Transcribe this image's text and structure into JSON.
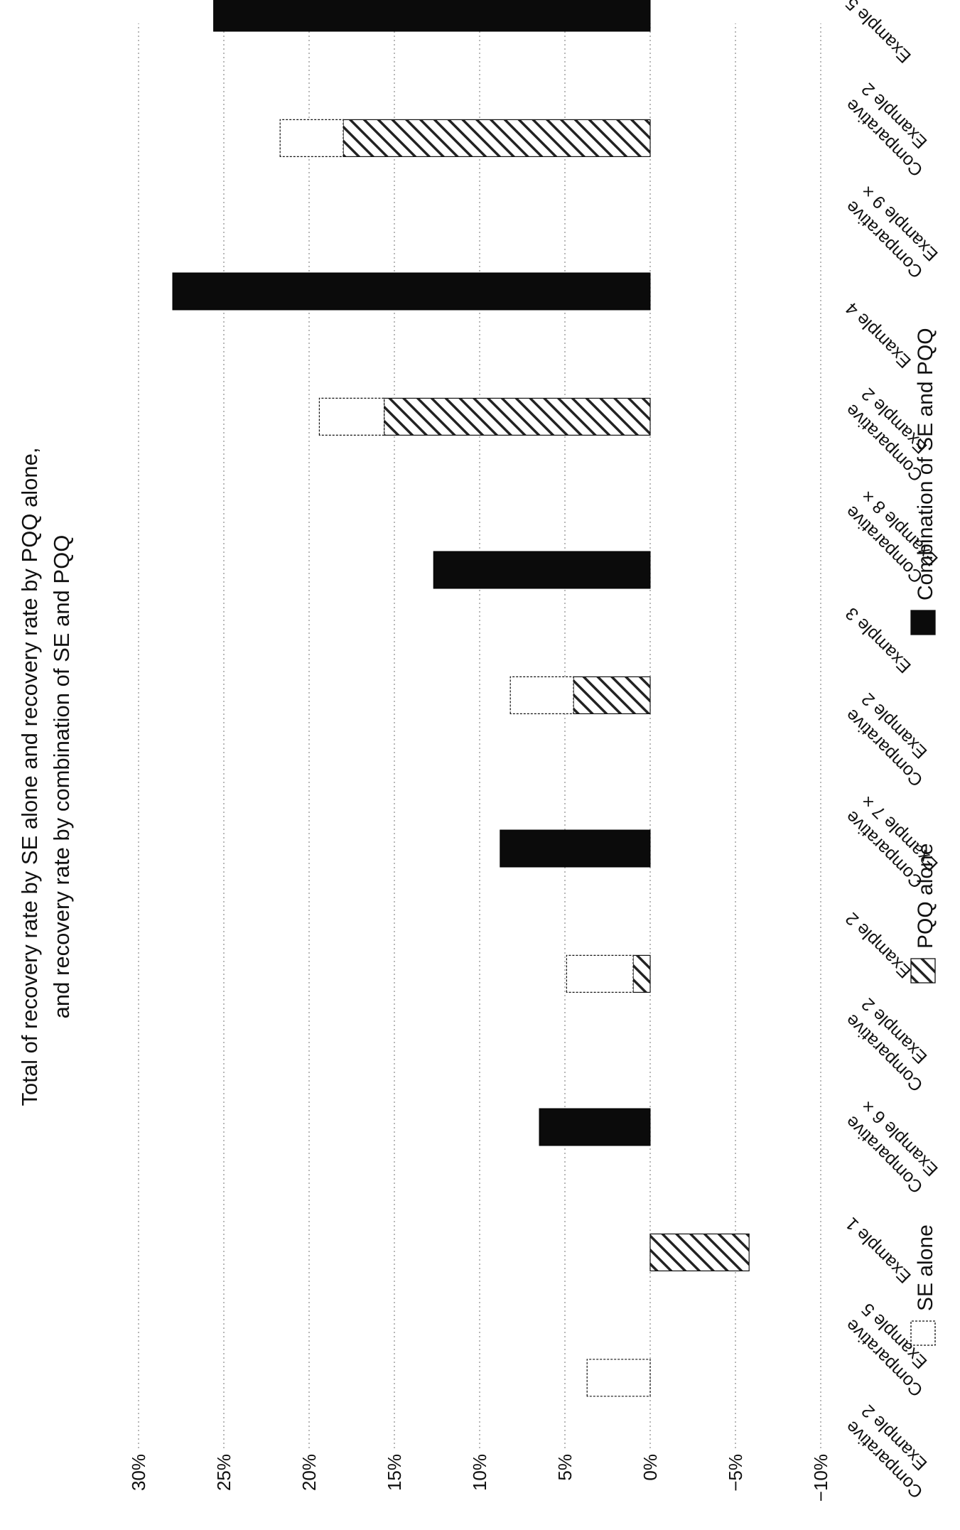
{
  "chart_data": {
    "type": "bar",
    "title_lines": [
      "Total of recovery rate by SE alone and recovery rate by PQQ alone,",
      "and recovery rate by combination of SE and PQQ"
    ],
    "xlabel": "",
    "ylabel": "",
    "ylim": [
      -10,
      30
    ],
    "y_ticks": [
      30,
      25,
      20,
      15,
      10,
      5,
      0,
      -5,
      -10
    ],
    "y_tick_labels": [
      "30%",
      "25%",
      "20%",
      "15%",
      "10%",
      "5%",
      "0%",
      "−5%",
      "−10%"
    ],
    "grid": true,
    "orientation": "rotated-90",
    "categories": [
      {
        "top": "Comparative",
        "bottom": "Example 2"
      },
      {
        "top": "Comparative",
        "bottom": "Example 5"
      },
      {
        "top": "Example 1",
        "bottom": ""
      },
      {
        "top": "Comparative",
        "bottom": "Example 6 ×"
      },
      {
        "top": "Comparative",
        "bottom": "Example 2"
      },
      {
        "top": "Example 2",
        "bottom": ""
      },
      {
        "top": "Comparative",
        "bottom": "Example 7 ×"
      },
      {
        "top": "Comparative",
        "bottom": "Example 2"
      },
      {
        "top": "Example 3",
        "bottom": ""
      },
      {
        "top": "Comparative",
        "bottom": "Example 8 ×"
      },
      {
        "top": "Comparative",
        "bottom": "Example 2"
      },
      {
        "top": "Example 4",
        "bottom": ""
      },
      {
        "top": "Comparative",
        "bottom": "Example 9 ×"
      },
      {
        "top": "Comparative",
        "bottom": "Example 2"
      },
      {
        "top": "Example 5",
        "bottom": ""
      }
    ],
    "bars": [
      {
        "kind": "se",
        "pos": 0.2,
        "value": 3.7
      },
      {
        "kind": "pqq",
        "pos": 1.1,
        "value": -5.8
      },
      {
        "kind": "comb",
        "pos": 2.0,
        "value": 6.5
      },
      {
        "kind": "stack",
        "pos": 3.1,
        "pqq": 1.0,
        "se": 3.9
      },
      {
        "kind": "comb",
        "pos": 4.0,
        "value": 8.8
      },
      {
        "kind": "stack",
        "pos": 5.1,
        "pqq": 4.5,
        "se": 3.7
      },
      {
        "kind": "comb",
        "pos": 6.0,
        "value": 12.7
      },
      {
        "kind": "stack",
        "pos": 7.1,
        "pqq": 15.6,
        "se": 3.8
      },
      {
        "kind": "comb",
        "pos": 8.0,
        "value": 28.0
      },
      {
        "kind": "stack",
        "pos": 9.1,
        "pqq": 18.0,
        "se": 3.7
      },
      {
        "kind": "comb",
        "pos": 10.0,
        "value": 25.6
      }
    ],
    "series": [
      {
        "name": "SE alone",
        "style": "white"
      },
      {
        "name": "PQQ alone",
        "style": "hatched"
      },
      {
        "name": "Combination of SE and PQQ",
        "style": "black"
      }
    ],
    "legend_position": "bottom"
  },
  "colors": {
    "black": "#0b0b0b",
    "hatch": "#222222",
    "grid": "#9a9a9a"
  }
}
